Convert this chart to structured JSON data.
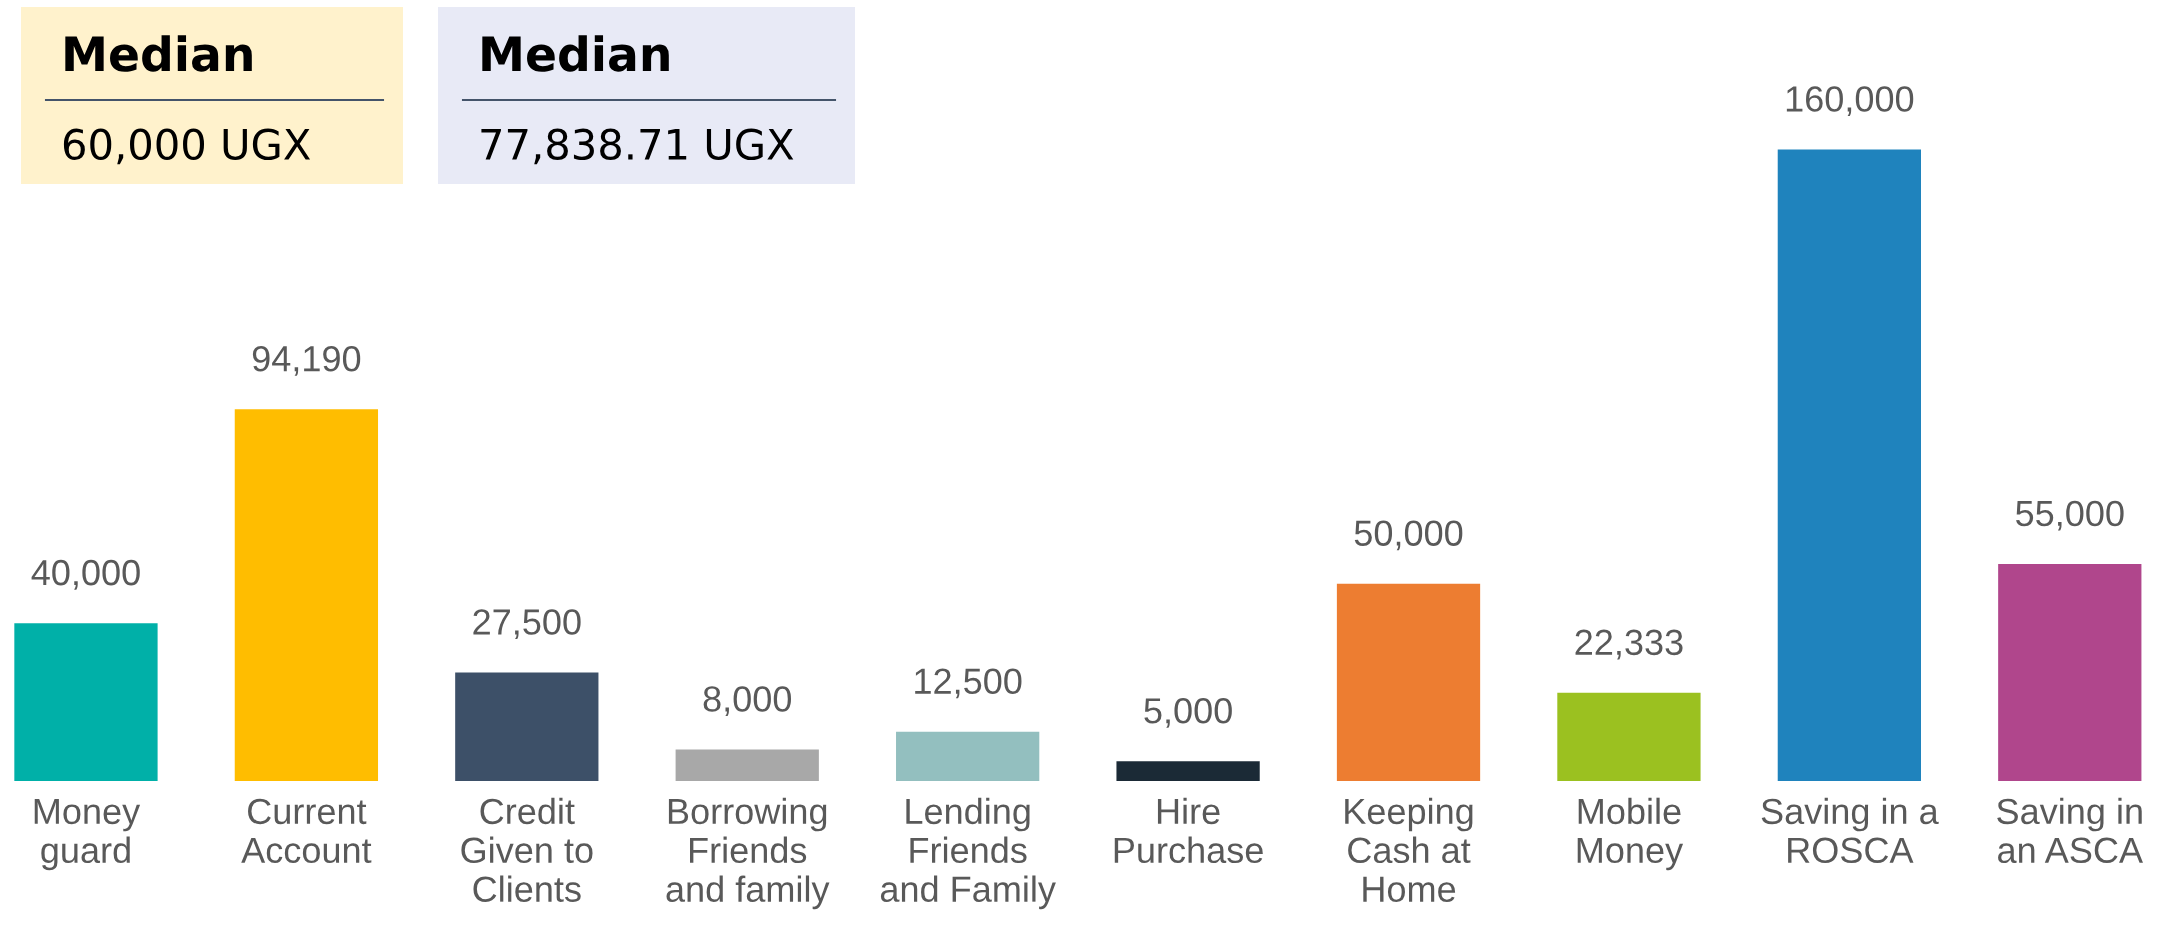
{
  "chart_data": {
    "type": "bar",
    "categories": [
      "Money\nguard",
      "Current\nAccount",
      "Credit\nGiven to\nClients",
      "Borrowing\nFriends\nand family",
      "Lending\nFriends\nand Family",
      "Hire\nPurchase",
      "Keeping\nCash at\nHome",
      "Mobile\nMoney",
      "Saving in a\nROSCA",
      "Saving in\nan ASCA"
    ],
    "values": [
      40000,
      94190,
      27500,
      8000,
      12500,
      5000,
      50000,
      22333,
      160000,
      55000
    ],
    "colors": [
      "#00b0a8",
      "#ffbd00",
      "#3d5068",
      "#a8a8a8",
      "#93bfbf",
      "#1b2a36",
      "#ed7d31",
      "#9bc120",
      "#1f83bd",
      "#b0468c"
    ],
    "value_labels": [
      "40,000",
      "94,190",
      "27,500",
      "8,000",
      "12,500",
      "5,000",
      "50,000",
      "22,333",
      "160,000",
      "55,000"
    ],
    "grid": false,
    "legend": false,
    "annotations": [
      "Median",
      "60,000 UGX",
      "Median",
      "77,838.71 UGX"
    ]
  }
}
